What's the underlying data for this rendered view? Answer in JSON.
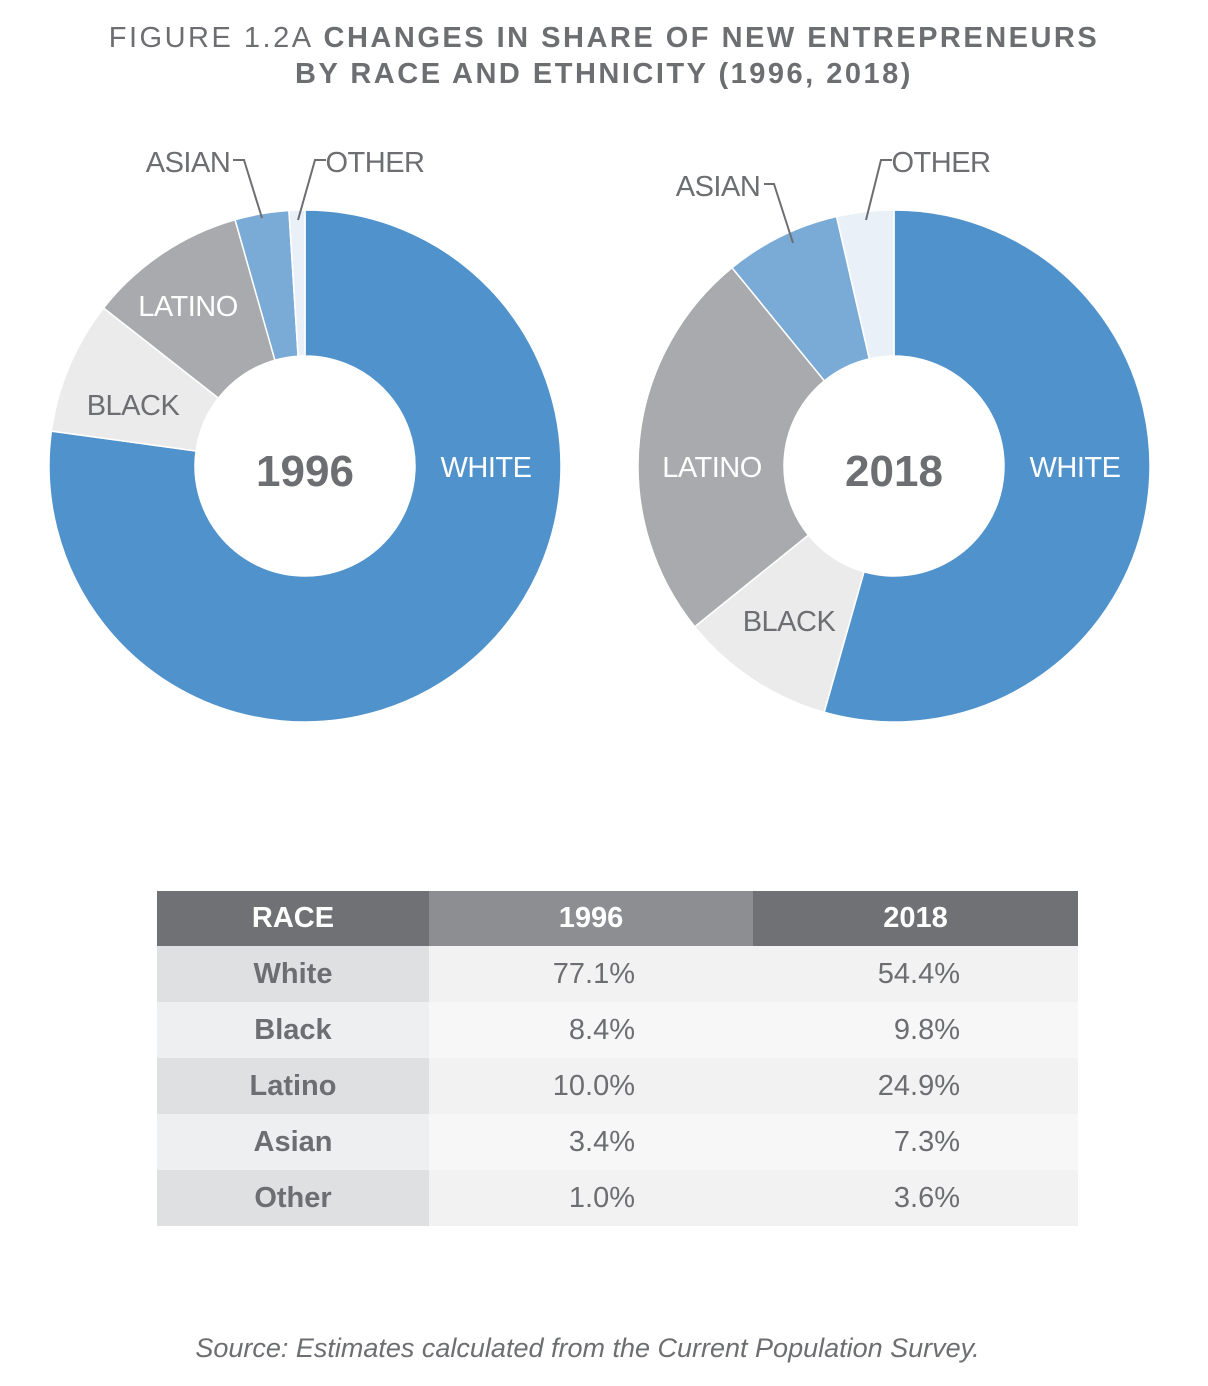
{
  "title": {
    "prefix": "FIGURE 1.2A",
    "line1": "CHANGES IN SHARE OF NEW ENTREPRENEURS",
    "line2": "BY RACE AND ETHNICITY (1996, 2018)"
  },
  "colors": {
    "White": "#5092cb",
    "Black": "#ebebec",
    "Latino": "#a9aaad",
    "Asian": "#7aaad6",
    "Other": "#eaf0f8"
  },
  "chart_data": [
    {
      "type": "pie",
      "title": "1996",
      "categories": [
        "White",
        "Black",
        "Latino",
        "Asian",
        "Other"
      ],
      "values": [
        77.1,
        8.4,
        10.0,
        3.4,
        1.0
      ],
      "labels": [
        "WHITE",
        "BLACK",
        "LATINO",
        "ASIAN",
        "OTHER"
      ]
    },
    {
      "type": "pie",
      "title": "2018",
      "categories": [
        "White",
        "Black",
        "Latino",
        "Asian",
        "Other"
      ],
      "values": [
        54.4,
        9.8,
        24.9,
        7.3,
        3.6
      ],
      "labels": [
        "WHITE",
        "BLACK",
        "LATINO",
        "ASIAN",
        "OTHER"
      ]
    }
  ],
  "table": {
    "headers": [
      "RACE",
      "1996",
      "2018"
    ],
    "rows": [
      [
        "White",
        "77.1%",
        "54.4%"
      ],
      [
        "Black",
        "8.4%",
        "9.8%"
      ],
      [
        "Latino",
        "10.0%",
        "24.9%"
      ],
      [
        "Asian",
        "3.4%",
        "7.3%"
      ],
      [
        "Other",
        "1.0%",
        "3.6%"
      ]
    ]
  },
  "source": "Source: Estimates calculated from the Current Population Survey."
}
